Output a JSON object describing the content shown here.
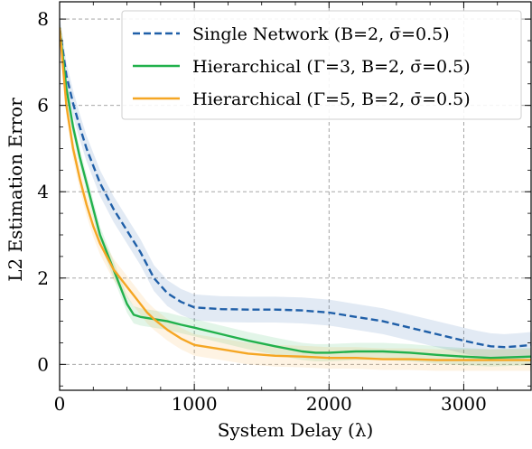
{
  "chart_data": {
    "type": "line",
    "xlabel": "System Delay (λ)",
    "ylabel": "L2 Estimation Error",
    "xlim": [
      0,
      3500
    ],
    "ylim": [
      -0.6,
      8.4
    ],
    "xticks": [
      0,
      1000,
      2000,
      3000
    ],
    "yticks": [
      0,
      2,
      4,
      6,
      8
    ],
    "grid": true,
    "legend_position": "top-right",
    "series": [
      {
        "name": "Single Network (B=2, σ̄=0.5)",
        "color": "#1f5fa8",
        "dash": "dashed",
        "band": 0.3,
        "x": [
          0,
          50,
          100,
          150,
          200,
          250,
          300,
          400,
          500,
          600,
          700,
          800,
          900,
          1000,
          1100,
          1200,
          1400,
          1600,
          1800,
          2000,
          2200,
          2400,
          2600,
          2800,
          3000,
          3100,
          3200,
          3300,
          3400,
          3500
        ],
        "y": [
          7.8,
          6.7,
          6.05,
          5.5,
          5.0,
          4.6,
          4.2,
          3.6,
          3.1,
          2.6,
          2.0,
          1.65,
          1.45,
          1.32,
          1.3,
          1.28,
          1.27,
          1.27,
          1.25,
          1.2,
          1.1,
          1.0,
          0.85,
          0.7,
          0.55,
          0.48,
          0.42,
          0.4,
          0.42,
          0.45
        ]
      },
      {
        "name": "Hierarchical (Γ=3, B=2, σ̄=0.5)",
        "color": "#22b14c",
        "dash": "solid",
        "band": 0.2,
        "x": [
          0,
          50,
          100,
          150,
          200,
          250,
          300,
          400,
          450,
          500,
          550,
          600,
          700,
          800,
          900,
          1000,
          1200,
          1400,
          1600,
          1800,
          1900,
          2000,
          2200,
          2400,
          2600,
          2800,
          3000,
          3200,
          3400,
          3500
        ],
        "y": [
          7.8,
          6.4,
          5.5,
          4.8,
          4.2,
          3.6,
          3.0,
          2.2,
          1.8,
          1.4,
          1.15,
          1.1,
          1.05,
          1.0,
          0.92,
          0.85,
          0.7,
          0.55,
          0.42,
          0.3,
          0.27,
          0.27,
          0.3,
          0.3,
          0.27,
          0.22,
          0.18,
          0.15,
          0.17,
          0.18
        ]
      },
      {
        "name": "Hierarchical (Γ=5, B=2, σ̄=0.5)",
        "color": "#f5a623",
        "dash": "solid",
        "band": 0.25,
        "x": [
          0,
          50,
          100,
          150,
          200,
          250,
          300,
          350,
          400,
          450,
          500,
          550,
          600,
          650,
          700,
          800,
          900,
          1000,
          1200,
          1400,
          1600,
          1800,
          2000,
          2200,
          2400,
          2600,
          2800,
          3000,
          3200,
          3400,
          3500
        ],
        "y": [
          7.8,
          6.0,
          5.0,
          4.3,
          3.7,
          3.2,
          2.8,
          2.5,
          2.2,
          2.0,
          1.8,
          1.6,
          1.4,
          1.2,
          1.05,
          0.8,
          0.6,
          0.45,
          0.35,
          0.25,
          0.2,
          0.18,
          0.15,
          0.15,
          0.12,
          0.12,
          0.1,
          0.1,
          0.1,
          0.1,
          0.1
        ]
      }
    ]
  }
}
